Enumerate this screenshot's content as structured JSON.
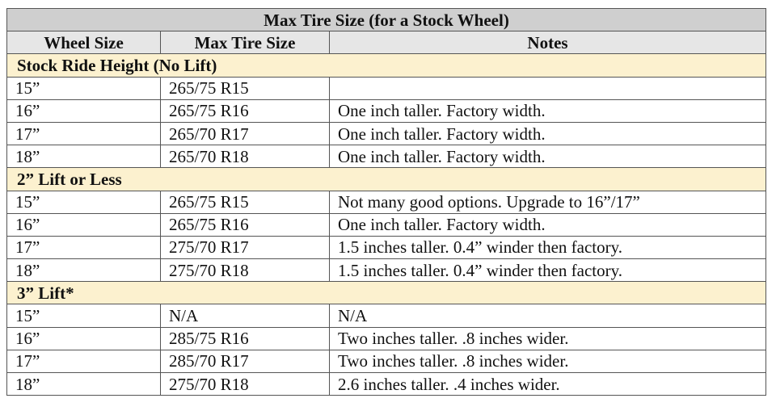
{
  "table": {
    "title": "Max Tire Size (for a Stock Wheel)",
    "columns": [
      "Wheel Size",
      "Max Tire Size",
      "Notes"
    ],
    "sections": [
      {
        "title": "Stock Ride Height (No Lift)",
        "rows": [
          [
            "15”",
            "265/75 R15"
          ],
          [
            "16”",
            "265/75 R16",
            "One inch taller. Factory width."
          ],
          [
            "17”",
            "265/70 R17",
            "One inch taller. Factory width."
          ],
          [
            "18”",
            "265/70 R18",
            "One inch taller. Factory width."
          ]
        ]
      },
      {
        "title": "2” Lift or Less",
        "rows": [
          [
            "15”",
            "265/75 R15",
            "Not many good options. Upgrade to 16”/17”"
          ],
          [
            "16”",
            "265/75 R16",
            "One inch taller. Factory width."
          ],
          [
            "17”",
            "275/70 R17",
            "1.5 inches taller. 0.4” winder then factory."
          ],
          [
            "18”",
            "275/70 R18",
            "1.5 inches taller. 0.4” winder then factory."
          ]
        ]
      },
      {
        "title": "3” Lift*",
        "rows": [
          [
            "15”",
            "N/A",
            "N/A"
          ],
          [
            "16”",
            "285/75 R16",
            "Two inches taller. .8 inches wider."
          ],
          [
            "17”",
            "285/70 R17",
            "Two inches taller. .8 inches wider."
          ],
          [
            "18”",
            "275/70 R18",
            "2.6 inches taller. .4 inches wider."
          ]
        ]
      }
    ]
  }
}
